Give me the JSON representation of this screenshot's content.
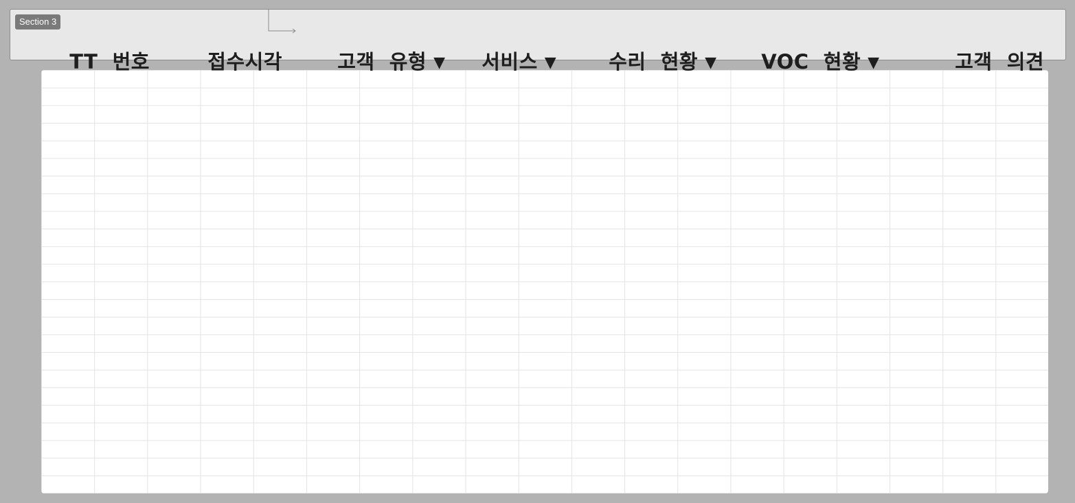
{
  "section_badge": "Section 3",
  "columns": [
    {
      "label": "TT  번호",
      "has_dropdown": false
    },
    {
      "label": "접수시각",
      "has_dropdown": false
    },
    {
      "label": "고객  유형",
      "has_dropdown": true
    },
    {
      "label": "서비스",
      "has_dropdown": true
    },
    {
      "label": "수리  현황",
      "has_dropdown": true
    },
    {
      "label": "VOC  현황",
      "has_dropdown": true
    },
    {
      "label": "고객  의견",
      "has_dropdown": false
    }
  ],
  "dropdown_glyph": "▼",
  "colors": {
    "background": "#b3b3b3",
    "header_bar": "#e8e8e8",
    "badge": "#7a7a7a",
    "grid_line": "#e3e3e3",
    "text": "#1e1e1e"
  }
}
